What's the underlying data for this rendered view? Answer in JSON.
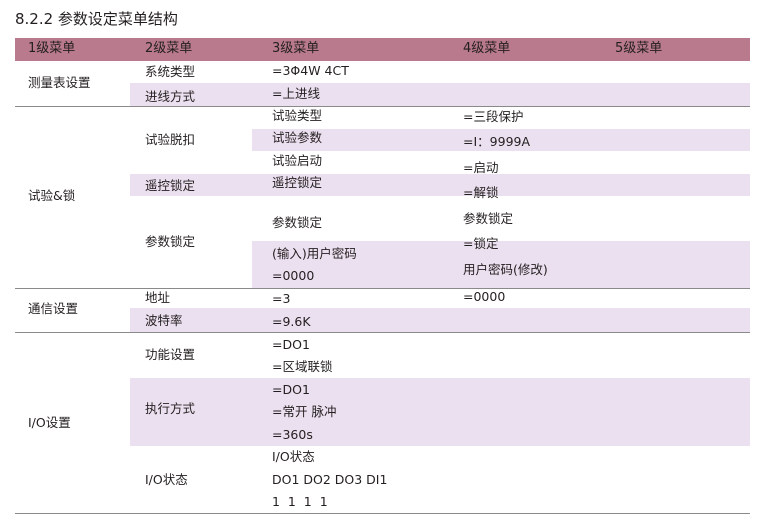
{
  "title": "8.2.2 参数设定菜单结构",
  "header": [
    "1级菜单",
    "2级菜单",
    "3级菜单",
    "4级菜单",
    "5级菜单"
  ],
  "colors": {
    "header_bg": "#b87a8c",
    "shade_bg": "#ebe0ef",
    "rule": "#8a8a8a"
  },
  "sections": {
    "meter": {
      "l1": "测量表设置",
      "l2": [
        "系统类型",
        "进线方式"
      ],
      "l3": [
        "=3Φ4W 4CT",
        "=上进线"
      ]
    },
    "test": {
      "l1": "试验&锁",
      "l2": [
        "试验脱扣",
        "遥控锁定",
        "参数锁定"
      ],
      "l3": [
        "试验类型",
        "试验参数",
        "试验启动",
        "遥控锁定",
        "参数锁定",
        "(输入)用户密码",
        "=0000"
      ],
      "l4": [
        "=三段保护",
        "=I：9999A",
        "=启动",
        "=解锁",
        "参数锁定",
        "=锁定",
        "用户密码(修改)"
      ]
    },
    "comm": {
      "l1": "通信设置",
      "l2": [
        "地址",
        "波特率"
      ],
      "l3": [
        "=3",
        "=9.6K"
      ],
      "l4": [
        "=0000"
      ]
    },
    "io": {
      "l1": "I/O设置",
      "l2": [
        "功能设置",
        "执行方式",
        "I/O状态"
      ],
      "l3": [
        "=DO1",
        "=区域联锁",
        "=DO1",
        "=常开 脉冲",
        "=360s",
        "I/O状态",
        "DO1 DO2 DO3 DI1",
        "1  1  1  1"
      ]
    }
  }
}
